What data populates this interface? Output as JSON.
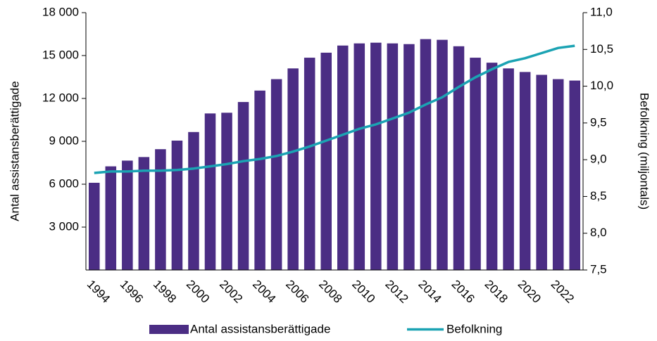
{
  "chart_data": {
    "type": "bar",
    "categories": [
      "1994",
      null,
      "1996",
      null,
      "1998",
      null,
      "2000",
      null,
      "2002",
      null,
      "2004",
      null,
      "2006",
      null,
      "2008",
      null,
      "2010",
      null,
      "2012",
      null,
      "2014",
      null,
      "2016",
      null,
      "2018",
      null,
      "2020",
      null,
      "2022",
      null
    ],
    "series": [
      {
        "name": "Antal assistansberättigade",
        "type": "bar",
        "axis": "y",
        "color": "#4b2d84",
        "values": [
          6100,
          7250,
          7650,
          7900,
          8450,
          9050,
          9650,
          10950,
          11000,
          11750,
          12550,
          13350,
          14100,
          14850,
          15200,
          15700,
          15850,
          15900,
          15850,
          15800,
          16150,
          16100,
          15650,
          14850,
          14500,
          14100,
          13850,
          13650,
          13350,
          13250
        ]
      },
      {
        "name": "Befolkning",
        "type": "line",
        "axis": "y2",
        "color": "#1ba3b3",
        "values": [
          8.82,
          8.84,
          8.84,
          8.85,
          8.85,
          8.86,
          8.88,
          8.91,
          8.94,
          8.98,
          9.01,
          9.05,
          9.11,
          9.18,
          9.26,
          9.34,
          9.42,
          9.48,
          9.56,
          9.64,
          9.75,
          9.85,
          9.99,
          10.12,
          10.23,
          10.33,
          10.38,
          10.45,
          10.52,
          10.55
        ]
      }
    ],
    "ylabel": "Antal assistansberättigade",
    "y2label": "Befolkning (miljontals)",
    "ylim": [
      0,
      18000
    ],
    "yticks": [
      {
        "value": 3000,
        "label": "3 000"
      },
      {
        "value": 6000,
        "label": "6 000"
      },
      {
        "value": 9000,
        "label": "9 000"
      },
      {
        "value": 12000,
        "label": "12 000"
      },
      {
        "value": 15000,
        "label": "15 000"
      },
      {
        "value": 18000,
        "label": "18 000"
      }
    ],
    "y2lim": [
      7.5,
      11.0
    ],
    "y2ticks": [
      {
        "value": 7.5,
        "label": "7,5"
      },
      {
        "value": 8.0,
        "label": "8,0"
      },
      {
        "value": 8.5,
        "label": "8,5"
      },
      {
        "value": 9.0,
        "label": "9,0"
      },
      {
        "value": 9.5,
        "label": "9,5"
      },
      {
        "value": 10.0,
        "label": "10,0"
      },
      {
        "value": 10.5,
        "label": "10,5"
      },
      {
        "value": 11.0,
        "label": "11,0"
      }
    ],
    "grid": false,
    "legend": "bottom"
  }
}
